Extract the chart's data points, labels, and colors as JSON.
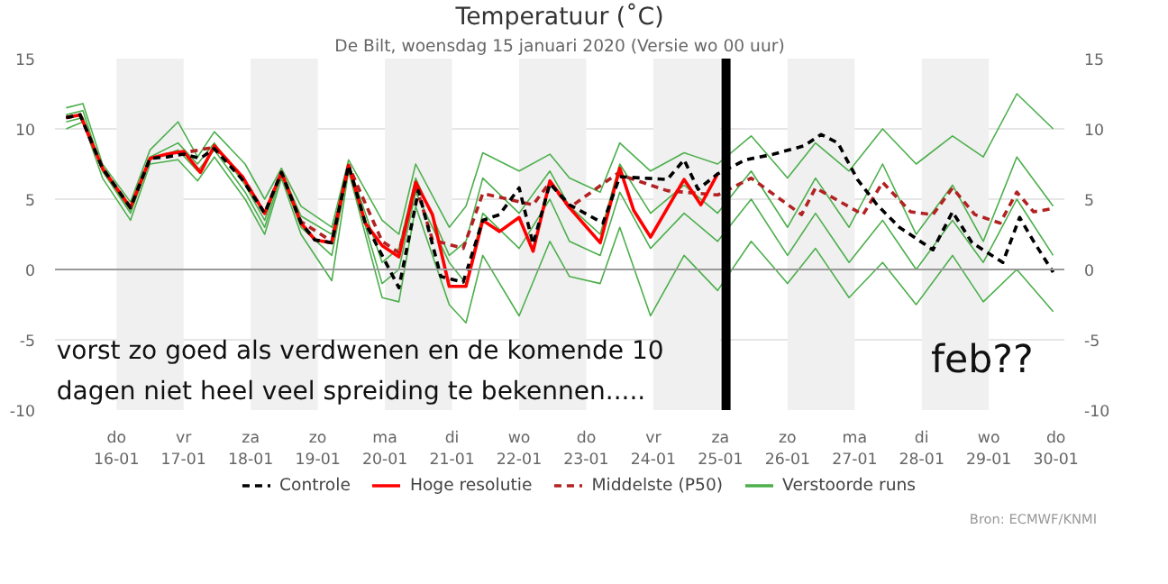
{
  "chart_data": {
    "type": "line",
    "title": "Temperatuur (˚C)",
    "subtitle": "De Bilt, woensdag 15 januari 2020 (Versie wo 00 uur)",
    "xlim": [
      "2020-01-15T02:00",
      "2020-01-30T03:00"
    ],
    "xticks": [
      {
        "value": "2020-01-16",
        "label": "do\n16-01"
      },
      {
        "value": "2020-01-17",
        "label": "vr\n17-01"
      },
      {
        "value": "2020-01-18",
        "label": "za\n18-01"
      },
      {
        "value": "2020-01-19",
        "label": "zo\n19-01"
      },
      {
        "value": "2020-01-20",
        "label": "ma\n20-01"
      },
      {
        "value": "2020-01-21",
        "label": "di\n21-01"
      },
      {
        "value": "2020-01-22",
        "label": "wo\n22-01"
      },
      {
        "value": "2020-01-23",
        "label": "do\n23-01"
      },
      {
        "value": "2020-01-24",
        "label": "vr\n24-01"
      },
      {
        "value": "2020-01-25",
        "label": "za\n25-01"
      },
      {
        "value": "2020-01-26",
        "label": "zo\n26-01"
      },
      {
        "value": "2020-01-27",
        "label": "ma\n27-01"
      },
      {
        "value": "2020-01-28",
        "label": "di\n28-01"
      },
      {
        "value": "2020-01-29",
        "label": "wo\n29-01"
      },
      {
        "value": "2020-01-30",
        "label": "do\n30-01"
      }
    ],
    "ylim": [
      -10,
      15
    ],
    "yticks": [
      -10,
      -5,
      0,
      5,
      10,
      15
    ],
    "y2lim": [
      -10,
      15
    ],
    "y2ticks": [
      -10,
      -5,
      0,
      5,
      10,
      15
    ],
    "grid": "y",
    "legend": "bottom",
    "x": [
      "2020-01-15T06:00",
      "2020-01-15T12:00",
      "2020-01-15T19:00",
      "2020-01-16T05:00",
      "2020-01-16T12:00",
      "2020-01-16T22:00",
      "2020-01-17T05:00",
      "2020-01-17T11:00",
      "2020-01-17T22:00",
      "2020-01-18T05:00",
      "2020-01-18T11:00",
      "2020-01-18T18:00",
      "2020-01-19T05:00",
      "2020-01-19T11:00",
      "2020-01-19T23:00",
      "2020-01-20T05:00",
      "2020-01-20T11:00",
      "2020-01-20T23:00",
      "2020-01-21T05:00",
      "2020-01-21T11:00",
      "2020-01-22T00:00",
      "2020-01-22T11:00",
      "2020-01-22T18:00",
      "2020-01-23T05:00",
      "2020-01-23T12:00",
      "2020-01-23T23:00",
      "2020-01-24T11:00",
      "2020-01-24T23:00",
      "2020-01-25T11:00",
      "2020-01-26T00:00",
      "2020-01-26T10:00",
      "2020-01-26T22:00",
      "2020-01-27T10:00",
      "2020-01-27T22:00",
      "2020-01-28T11:00",
      "2020-01-28T22:00",
      "2020-01-29T10:00",
      "2020-01-29T23:00"
    ],
    "series": [
      {
        "name": "Controle",
        "color": "#000000",
        "line_style": "dashed",
        "x": [
          "2020-01-15T06:00",
          "2020-01-15T11:00",
          "2020-01-15T19:00",
          "2020-01-16T05:00",
          "2020-01-16T12:00",
          "2020-01-16T18:00",
          "2020-01-17T00:00",
          "2020-01-17T06:00",
          "2020-01-17T11:00",
          "2020-01-17T21:00",
          "2020-01-18T05:00",
          "2020-01-18T11:00",
          "2020-01-18T18:00",
          "2020-01-18T23:00",
          "2020-01-19T05:00",
          "2020-01-19T11:00",
          "2020-01-19T17:00",
          "2020-01-19T23:00",
          "2020-01-20T05:00",
          "2020-01-20T12:00",
          "2020-01-20T20:00",
          "2020-01-21T04:00",
          "2020-01-21T11:00",
          "2020-01-21T17:00",
          "2020-01-22T00:00",
          "2020-01-22T05:00",
          "2020-01-22T11:00",
          "2020-01-22T18:00",
          "2020-01-23T06:00",
          "2020-01-23T12:00",
          "2020-01-24T05:00",
          "2020-01-24T11:00",
          "2020-01-24T16:00",
          "2020-01-24T23:00",
          "2020-01-25T09:00",
          "2020-01-25T19:00",
          "2020-01-26T06:00",
          "2020-01-26T12:00",
          "2020-01-26T18:00",
          "2020-01-27T01:00",
          "2020-01-27T08:00",
          "2020-01-27T16:00",
          "2020-01-28T04:00",
          "2020-01-28T11:00",
          "2020-01-28T18:00",
          "2020-01-29T05:00",
          "2020-01-29T11:00",
          "2020-01-29T16:00",
          "2020-01-29T23:00"
        ],
        "values": [
          10.8,
          11.0,
          7.2,
          4.4,
          7.9,
          8.0,
          8.2,
          7.9,
          8.6,
          6.4,
          4.0,
          6.9,
          3.3,
          2.1,
          1.9,
          7.4,
          3.3,
          1.0,
          -1.3,
          5.6,
          -0.5,
          -0.9,
          3.5,
          3.9,
          5.8,
          1.8,
          6.1,
          4.6,
          3.3,
          6.6,
          6.4,
          7.8,
          5.7,
          6.8,
          7.8,
          8.2,
          8.8,
          9.6,
          9.0,
          6.4,
          4.6,
          3.0,
          1.4,
          4.1,
          1.9,
          0.5,
          3.7,
          2.0,
          -0.2
        ]
      },
      {
        "name": "Hoge resolutie",
        "color": "#ff0000",
        "line_style": "solid",
        "x": [
          "2020-01-15T06:00",
          "2020-01-15T11:00",
          "2020-01-15T19:00",
          "2020-01-16T05:00",
          "2020-01-16T12:00",
          "2020-01-16T18:00",
          "2020-01-17T00:00",
          "2020-01-17T06:00",
          "2020-01-17T11:00",
          "2020-01-17T21:00",
          "2020-01-18T05:00",
          "2020-01-18T11:00",
          "2020-01-18T18:00",
          "2020-01-18T23:00",
          "2020-01-19T05:00",
          "2020-01-19T11:00",
          "2020-01-19T17:00",
          "2020-01-19T23:00",
          "2020-01-20T05:00",
          "2020-01-20T11:00",
          "2020-01-20T17:00",
          "2020-01-20T23:00",
          "2020-01-21T05:00",
          "2020-01-21T11:00",
          "2020-01-21T17:00",
          "2020-01-22T00:00",
          "2020-01-22T05:00",
          "2020-01-22T11:00",
          "2020-01-22T18:00",
          "2020-01-23T05:00",
          "2020-01-23T12:00",
          "2020-01-23T17:00",
          "2020-01-23T23:00",
          "2020-01-24T11:00",
          "2020-01-24T17:00",
          "2020-01-24T23:00"
        ],
        "values": [
          10.8,
          11.0,
          7.2,
          4.4,
          7.9,
          8.2,
          8.4,
          6.9,
          8.8,
          6.6,
          4.0,
          6.9,
          3.3,
          2.1,
          1.9,
          7.4,
          3.3,
          1.7,
          0.9,
          6.2,
          3.9,
          -1.2,
          -1.2,
          3.5,
          2.7,
          3.7,
          1.3,
          6.3,
          4.4,
          1.9,
          7.2,
          4.2,
          2.3,
          6.4,
          4.6,
          6.8
        ]
      },
      {
        "name": "Middelste (P50)",
        "color": "#b22222",
        "line_style": "dashed",
        "x": [
          "2020-01-15T06:00",
          "2020-01-15T11:00",
          "2020-01-15T19:00",
          "2020-01-16T05:00",
          "2020-01-16T12:00",
          "2020-01-17T00:00",
          "2020-01-17T11:00",
          "2020-01-17T21:00",
          "2020-01-18T05:00",
          "2020-01-18T11:00",
          "2020-01-18T18:00",
          "2020-01-19T05:00",
          "2020-01-19T11:00",
          "2020-01-19T23:00",
          "2020-01-20T05:00",
          "2020-01-20T11:00",
          "2020-01-20T17:00",
          "2020-01-21T04:00",
          "2020-01-21T11:00",
          "2020-01-22T05:00",
          "2020-01-22T11:00",
          "2020-01-22T18:00",
          "2020-01-23T11:00",
          "2020-01-24T05:00",
          "2020-01-24T23:00",
          "2020-01-25T11:00",
          "2020-01-26T05:00",
          "2020-01-26T10:00",
          "2020-01-27T03:00",
          "2020-01-27T10:00",
          "2020-01-27T20:00",
          "2020-01-28T04:00",
          "2020-01-28T11:00",
          "2020-01-28T19:00",
          "2020-01-29T04:00",
          "2020-01-29T10:00",
          "2020-01-29T16:00",
          "2020-01-29T22:00"
        ],
        "values": [
          10.8,
          11.0,
          7.2,
          4.4,
          7.9,
          8.3,
          8.7,
          6.6,
          4.0,
          6.9,
          3.4,
          2.0,
          7.4,
          2.0,
          1.2,
          6.0,
          2.1,
          1.5,
          5.4,
          4.6,
          6.2,
          4.4,
          6.8,
          5.6,
          5.3,
          6.5,
          3.9,
          5.8,
          3.9,
          6.2,
          4.1,
          3.9,
          5.8,
          3.9,
          3.3,
          5.5,
          4.1,
          4.3
        ]
      },
      {
        "name": "Verstoorde runs",
        "color": "#4caf4c",
        "line_style": "solid",
        "values": [
          11.5,
          11.8,
          7.5,
          4.8,
          8.5,
          10.5,
          8.0,
          9.8,
          7.5,
          5.0,
          7.2,
          4.5,
          3.0,
          7.8,
          3.5,
          2.5,
          7.5,
          3.0,
          4.5,
          8.3,
          7.0,
          8.2,
          6.5,
          5.5,
          9.0,
          7.0,
          8.3,
          7.5,
          9.5,
          6.5,
          9.0,
          7.0,
          10.0,
          7.5,
          9.5,
          8.0,
          12.5,
          10.0
        ]
      },
      {
        "color": "#4caf4c",
        "line_style": "solid",
        "values": [
          10.0,
          10.5,
          6.5,
          3.5,
          7.5,
          7.8,
          6.3,
          8.0,
          5.0,
          2.5,
          6.5,
          2.5,
          -0.8,
          7.0,
          -2.0,
          -2.3,
          4.5,
          -2.5,
          -3.8,
          1.0,
          -3.3,
          2.0,
          -0.5,
          -1.0,
          3.0,
          -3.3,
          1.0,
          -1.5,
          2.0,
          -1.0,
          1.5,
          -2.0,
          0.5,
          -2.5,
          1.0,
          -2.3,
          0.0,
          -3.0
        ]
      },
      {
        "color": "#4caf4c",
        "line_style": "solid",
        "values": [
          11.0,
          11.3,
          7.0,
          4.2,
          8.0,
          9.0,
          7.5,
          9.0,
          6.0,
          3.5,
          7.0,
          3.8,
          2.5,
          7.5,
          0.5,
          1.5,
          6.5,
          1.0,
          2.0,
          6.5,
          4.0,
          7.0,
          4.5,
          2.5,
          7.5,
          4.0,
          6.0,
          4.0,
          7.0,
          3.0,
          6.5,
          3.0,
          7.5,
          2.5,
          6.0,
          2.0,
          8.0,
          4.5
        ]
      },
      {
        "color": "#4caf4c",
        "line_style": "solid",
        "values": [
          10.5,
          10.8,
          7.0,
          4.0,
          7.8,
          8.5,
          7.0,
          8.5,
          5.5,
          3.0,
          6.8,
          3.0,
          1.0,
          7.2,
          -1.0,
          0.0,
          5.5,
          0.5,
          -1.0,
          4.0,
          1.5,
          5.0,
          2.0,
          1.0,
          5.5,
          1.5,
          4.0,
          2.0,
          5.0,
          1.0,
          4.0,
          0.5,
          3.5,
          0.0,
          3.5,
          0.5,
          5.0,
          1.0
        ]
      }
    ],
    "ref_lines": [
      {
        "axis": "y",
        "value": 0,
        "color": "#999999"
      },
      {
        "axis": "x",
        "value": "2020-01-25T02:00",
        "color": "#000000"
      }
    ],
    "bands": [
      {
        "axis": "x",
        "from": "2020-01-16",
        "to": "2020-01-17",
        "color": "#f0f0f0"
      },
      {
        "axis": "x",
        "from": "2020-01-18",
        "to": "2020-01-19",
        "color": "#f0f0f0"
      },
      {
        "axis": "x",
        "from": "2020-01-20",
        "to": "2020-01-21",
        "color": "#f0f0f0"
      },
      {
        "axis": "x",
        "from": "2020-01-22",
        "to": "2020-01-23",
        "color": "#f0f0f0"
      },
      {
        "axis": "x",
        "from": "2020-01-24",
        "to": "2020-01-25",
        "color": "#f0f0f0"
      },
      {
        "axis": "x",
        "from": "2020-01-26",
        "to": "2020-01-27",
        "color": "#f0f0f0"
      },
      {
        "axis": "x",
        "from": "2020-01-28",
        "to": "2020-01-29",
        "color": "#f0f0f0"
      }
    ],
    "annotations": [
      "vorst zo goed als verdwenen en de komende 10\ndagen niet heel veel spreiding te bekennen.....",
      "feb??",
      "Bron: ECMWF/KNMI"
    ]
  }
}
